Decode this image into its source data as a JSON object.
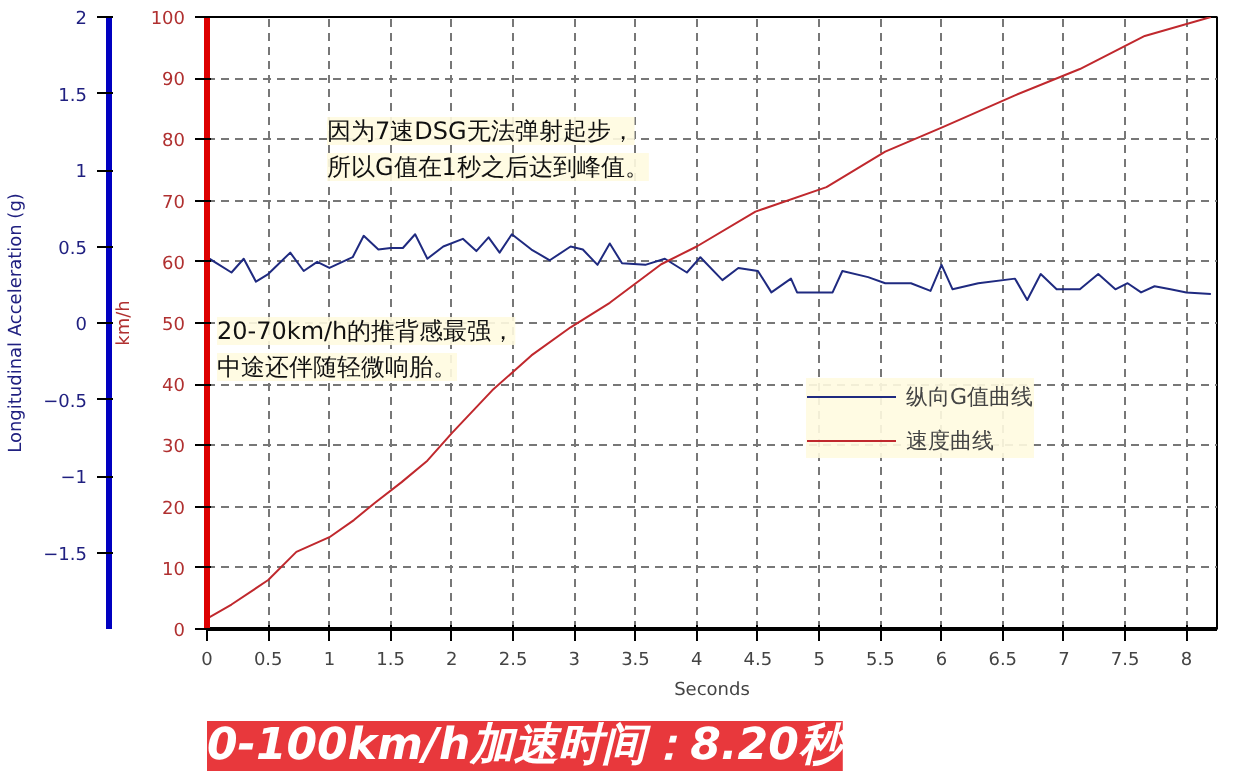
{
  "chart_data": {
    "type": "line",
    "title": "0-100km/h加速时间：8.20秒",
    "xlabel": "Seconds",
    "ylabel": "km/h",
    "y2label": "Longitudinal Acceleration (g)",
    "annotations": [
      "因为7速DSG无法弹射起步，",
      "所以G值在1秒之后达到峰值。",
      "20-70km/h的推背感最强，",
      "中途还伴随轻微响胎。"
    ],
    "xlim": [
      0,
      8.25
    ],
    "xticks": [
      0,
      0.5,
      1,
      1.5,
      2,
      2.5,
      3,
      3.5,
      4,
      4.5,
      5,
      5.5,
      6,
      6.5,
      7,
      7.5,
      8
    ],
    "ylim": [
      0,
      100
    ],
    "yticks": [
      0,
      10,
      20,
      30,
      40,
      50,
      60,
      70,
      80,
      90,
      100
    ],
    "y2lim": [
      -2,
      2
    ],
    "y2ticks": [
      -1.5,
      -1,
      -0.5,
      0,
      0.5,
      1,
      1.5,
      2
    ],
    "grid": true,
    "legend": "right",
    "line_style": "solid",
    "series": [
      {
        "name": "纵向G值曲线",
        "color": "#1f2a80",
        "axis": "y2",
        "x": [
          0,
          0.2,
          0.3,
          0.4,
          0.5,
          0.68,
          0.79,
          0.9,
          1.0,
          1.19,
          1.28,
          1.4,
          1.5,
          1.6,
          1.7,
          1.8,
          1.93,
          2.09,
          2.2,
          2.3,
          2.39,
          2.49,
          2.65,
          2.8,
          2.97,
          3.07,
          3.19,
          3.29,
          3.39,
          3.58,
          3.74,
          3.92,
          4.03,
          4.21,
          4.34,
          4.5,
          4.61,
          4.77,
          4.82,
          5.11,
          5.19,
          5.4,
          5.54,
          5.75,
          5.91,
          6.0,
          6.09,
          6.3,
          6.6,
          6.7,
          6.81,
          6.94,
          7.13,
          7.28,
          7.42,
          7.52,
          7.63,
          7.74,
          7.87,
          8.0,
          8.2
        ],
        "values": [
          0.43,
          0.33,
          0.42,
          0.27,
          0.32,
          0.46,
          0.34,
          0.4,
          0.36,
          0.43,
          0.57,
          0.48,
          0.49,
          0.49,
          0.58,
          0.42,
          0.5,
          0.55,
          0.47,
          0.56,
          0.46,
          0.58,
          0.48,
          0.41,
          0.5,
          0.48,
          0.38,
          0.52,
          0.39,
          0.38,
          0.42,
          0.33,
          0.43,
          0.28,
          0.36,
          0.34,
          0.2,
          0.29,
          0.2,
          0.2,
          0.34,
          0.3,
          0.26,
          0.26,
          0.21,
          0.38,
          0.22,
          0.26,
          0.29,
          0.15,
          0.32,
          0.22,
          0.22,
          0.32,
          0.22,
          0.26,
          0.2,
          0.24,
          0.22,
          0.2,
          0.19
        ]
      },
      {
        "name": "速度曲线",
        "color": "#c0282d",
        "x": [
          0,
          0.2,
          0.5,
          0.73,
          1.0,
          1.2,
          1.37,
          1.59,
          1.8,
          2.0,
          2.33,
          2.65,
          2.97,
          3.29,
          3.71,
          4.0,
          4.48,
          5.06,
          5.54,
          6.01,
          6.6,
          7.13,
          7.66,
          8.2
        ],
        "values": [
          1.7,
          4,
          8,
          12.6,
          15,
          17.8,
          20.6,
          24,
          27.5,
          32,
          39,
          44.7,
          49.3,
          53.3,
          59.6,
          62.5,
          68.2,
          72.2,
          78,
          82,
          87.2,
          91.5,
          96.9,
          100
        ]
      }
    ]
  }
}
